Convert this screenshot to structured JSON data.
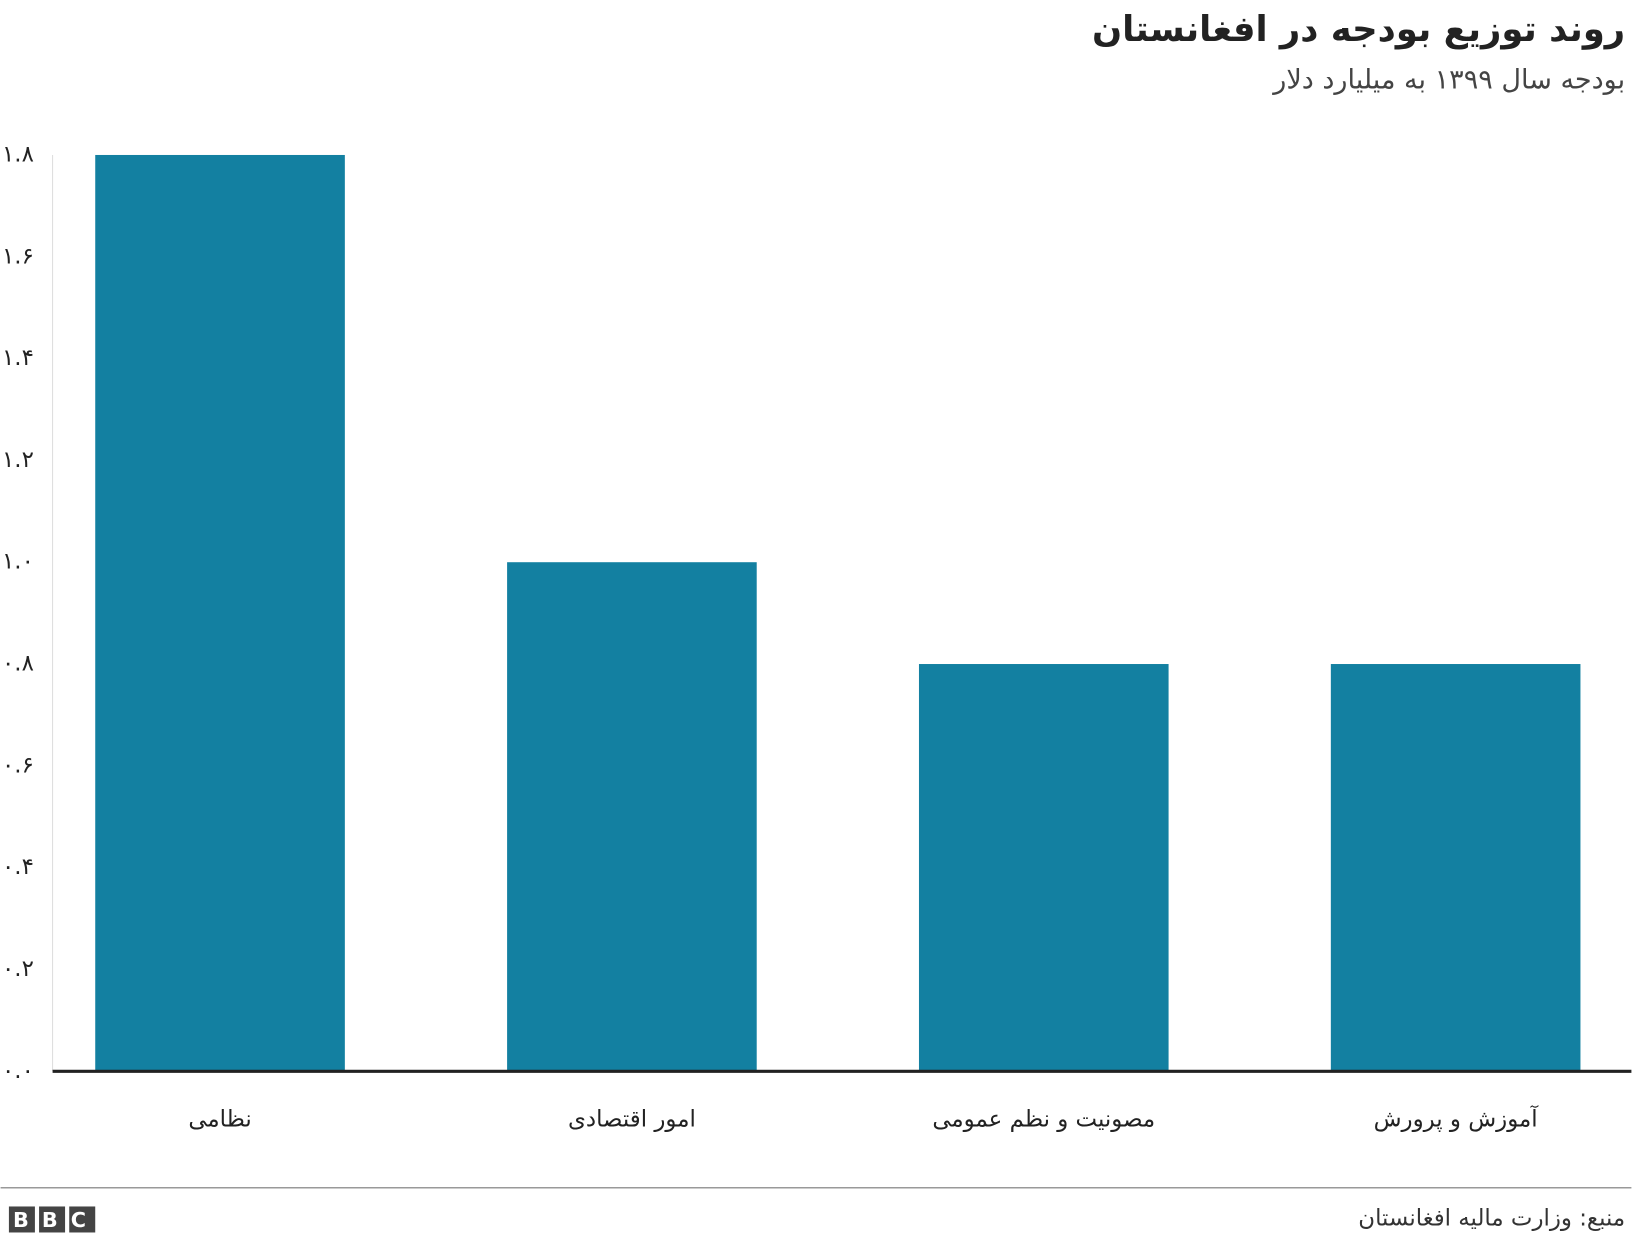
{
  "chart_data": {
    "type": "bar",
    "title": "روند توزیع بودجه در افغانستان",
    "subtitle": "بودجه سال ۱۳۹۹ به میلیارد دلار",
    "categories": [
      "نظامی",
      "امور اقتصادی",
      "مصونیت و نظم عمومی",
      "آموزش و پرورش"
    ],
    "values": [
      1.8,
      1.0,
      0.8,
      0.8
    ],
    "color": "#1380a1",
    "ylim": [
      0,
      1.8
    ],
    "yticks": [
      {
        "value": 0,
        "label": "۰.۰"
      },
      {
        "value": 0.2,
        "label": "۰.۲"
      },
      {
        "value": 0.4,
        "label": "۰.۴"
      },
      {
        "value": 0.6,
        "label": "۰.۶"
      },
      {
        "value": 0.8,
        "label": "۰.۸"
      },
      {
        "value": 1.0,
        "label": "۱.۰"
      },
      {
        "value": 1.2,
        "label": "۱.۲"
      },
      {
        "value": 1.4,
        "label": "۱.۴"
      },
      {
        "value": 1.6,
        "label": "۱.۶"
      },
      {
        "value": 1.8,
        "label": "۱.۸"
      }
    ],
    "grid": false,
    "source": "منبع: وزارت مالیه افغانستان",
    "logo": "BBC"
  }
}
